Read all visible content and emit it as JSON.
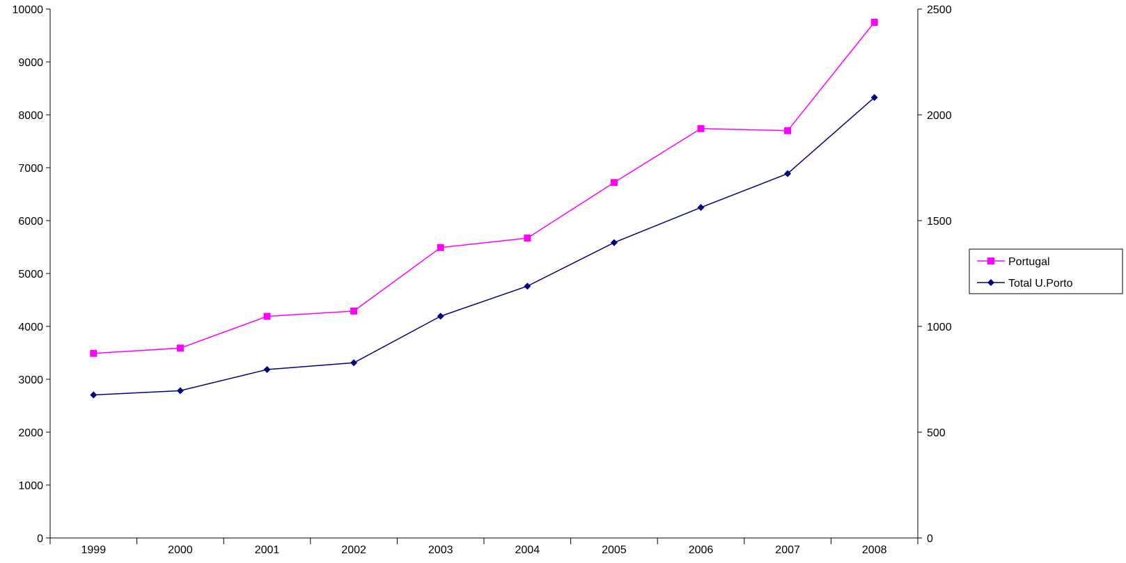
{
  "chart_data": {
    "type": "line",
    "categories": [
      "1999",
      "2000",
      "2001",
      "2002",
      "2003",
      "2004",
      "2005",
      "2006",
      "2007",
      "2008"
    ],
    "series": [
      {
        "name": "Portugal",
        "axis": "left",
        "color": "#FF00FF",
        "marker": "square",
        "values": [
          3490,
          3590,
          4190,
          4290,
          5490,
          5670,
          6720,
          7740,
          7700,
          9750
        ]
      },
      {
        "name": "Total U.Porto",
        "axis": "right",
        "color": "#000080",
        "marker": "diamond",
        "values": [
          676,
          696,
          796,
          828,
          1048,
          1190,
          1396,
          1562,
          1722,
          2082
        ]
      }
    ],
    "y_left": {
      "min": 0,
      "max": 10000,
      "ticks": [
        "0",
        "1000",
        "2000",
        "3000",
        "4000",
        "5000",
        "6000",
        "7000",
        "8000",
        "9000",
        "10000"
      ]
    },
    "y_right": {
      "min": 0,
      "max": 2500,
      "ticks": [
        "0",
        "500",
        "1000",
        "1500",
        "2000",
        "2500"
      ]
    },
    "title": "",
    "xlabel": "",
    "ylabel": "",
    "grid": false,
    "legend": "right"
  }
}
